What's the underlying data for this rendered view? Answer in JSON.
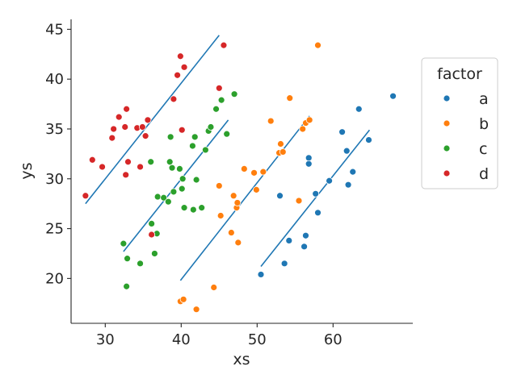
{
  "chart_data": {
    "type": "scatter",
    "title": "",
    "xlabel": "xs",
    "ylabel": "ys",
    "xlim": [
      25.5,
      70.5
    ],
    "ylim": [
      15.5,
      46
    ],
    "xticks": [
      30,
      40,
      50,
      60
    ],
    "yticks": [
      20,
      25,
      30,
      35,
      40,
      45
    ],
    "legend": {
      "title": "factor",
      "position": "right"
    },
    "series": [
      {
        "name": "a",
        "color": "#1f77b4",
        "points": [
          [
            50.5,
            20.4
          ],
          [
            53.6,
            21.5
          ],
          [
            54.2,
            23.8
          ],
          [
            56.2,
            23.2
          ],
          [
            56.4,
            24.3
          ],
          [
            53.0,
            28.3
          ],
          [
            56.8,
            32.1
          ],
          [
            56.8,
            31.5
          ],
          [
            57.7,
            28.5
          ],
          [
            58.0,
            26.6
          ],
          [
            59.5,
            29.8
          ],
          [
            61.2,
            34.7
          ],
          [
            61.8,
            32.8
          ],
          [
            62.0,
            29.4
          ],
          [
            62.6,
            30.7
          ],
          [
            63.4,
            37.0
          ],
          [
            64.7,
            33.9
          ],
          [
            67.9,
            38.3
          ]
        ],
        "fit": [
          [
            50.5,
            21.2
          ],
          [
            64.8,
            34.9
          ]
        ]
      },
      {
        "name": "b",
        "color": "#ff7f0e",
        "points": [
          [
            39.9,
            17.7
          ],
          [
            40.3,
            17.9
          ],
          [
            42.0,
            16.9
          ],
          [
            44.3,
            19.1
          ],
          [
            45.0,
            29.3
          ],
          [
            45.2,
            26.3
          ],
          [
            46.6,
            24.6
          ],
          [
            46.9,
            28.3
          ],
          [
            47.3,
            27.1
          ],
          [
            47.4,
            27.6
          ],
          [
            47.5,
            23.6
          ],
          [
            48.3,
            31.0
          ],
          [
            49.6,
            30.6
          ],
          [
            49.9,
            28.9
          ],
          [
            50.8,
            30.7
          ],
          [
            51.8,
            35.8
          ],
          [
            52.9,
            32.6
          ],
          [
            53.1,
            33.5
          ],
          [
            53.4,
            32.7
          ],
          [
            54.3,
            38.1
          ],
          [
            55.5,
            27.8
          ],
          [
            56.0,
            35.0
          ],
          [
            56.4,
            35.6
          ],
          [
            56.9,
            35.9
          ],
          [
            58.0,
            43.4
          ]
        ],
        "fit": [
          [
            39.9,
            19.8
          ],
          [
            56.9,
            36.3
          ]
        ]
      },
      {
        "name": "c",
        "color": "#2ca02c",
        "points": [
          [
            32.4,
            23.5
          ],
          [
            32.8,
            19.2
          ],
          [
            32.9,
            22.0
          ],
          [
            34.6,
            21.5
          ],
          [
            36.0,
            31.7
          ],
          [
            36.1,
            25.5
          ],
          [
            36.5,
            22.5
          ],
          [
            36.8,
            24.5
          ],
          [
            36.9,
            28.2
          ],
          [
            37.7,
            28.1
          ],
          [
            38.3,
            27.7
          ],
          [
            38.5,
            31.7
          ],
          [
            38.6,
            34.2
          ],
          [
            38.8,
            31.1
          ],
          [
            39.0,
            28.7
          ],
          [
            39.8,
            31.0
          ],
          [
            40.1,
            29.0
          ],
          [
            40.2,
            30.0
          ],
          [
            40.4,
            27.1
          ],
          [
            41.5,
            33.3
          ],
          [
            41.6,
            26.9
          ],
          [
            41.8,
            34.2
          ],
          [
            42.0,
            29.9
          ],
          [
            42.7,
            27.1
          ],
          [
            43.2,
            32.9
          ],
          [
            43.6,
            34.8
          ],
          [
            43.9,
            35.2
          ],
          [
            44.6,
            37.0
          ],
          [
            45.3,
            37.9
          ],
          [
            46.0,
            34.5
          ],
          [
            47.0,
            38.5
          ]
        ],
        "fit": [
          [
            32.4,
            22.7
          ],
          [
            46.2,
            35.9
          ]
        ]
      },
      {
        "name": "d",
        "color": "#d62728",
        "points": [
          [
            27.4,
            28.3
          ],
          [
            28.3,
            31.9
          ],
          [
            29.6,
            31.2
          ],
          [
            30.9,
            34.1
          ],
          [
            31.1,
            35.0
          ],
          [
            31.8,
            36.2
          ],
          [
            32.6,
            35.2
          ],
          [
            32.7,
            30.4
          ],
          [
            32.8,
            37.0
          ],
          [
            33.0,
            31.7
          ],
          [
            34.2,
            35.1
          ],
          [
            34.6,
            31.2
          ],
          [
            34.9,
            35.2
          ],
          [
            35.3,
            34.3
          ],
          [
            35.6,
            35.9
          ],
          [
            36.1,
            24.4
          ],
          [
            39.0,
            38.0
          ],
          [
            39.5,
            40.4
          ],
          [
            39.9,
            42.3
          ],
          [
            40.1,
            34.9
          ],
          [
            40.4,
            41.2
          ],
          [
            45.0,
            39.1
          ],
          [
            45.6,
            43.4
          ]
        ],
        "fit": [
          [
            27.4,
            27.5
          ],
          [
            45.0,
            44.4
          ]
        ]
      }
    ]
  }
}
